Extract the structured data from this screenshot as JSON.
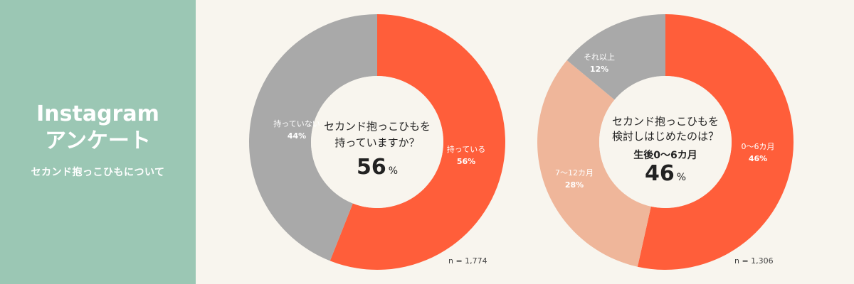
{
  "sidebar": {
    "title_line1": "Instagram",
    "title_line2": "アンケート",
    "subtitle": "セカンド抱っこひもについて"
  },
  "colors": {
    "sidebar_bg": "#9bc7b4",
    "background": "#f8f5ee",
    "orange": "#ff5e3a",
    "gray": "#a9a9a9",
    "peach": "#efb69a",
    "center_text": "#222222"
  },
  "chart_data": [
    {
      "type": "pie",
      "donut": true,
      "question_line1": "セカンド抱っこひもを",
      "question_line2": "持っていますか？",
      "highlight_value": "56",
      "highlight_unit": "%",
      "n_label": "n = 1,774",
      "slices": [
        {
          "label": "持っている",
          "value": 56,
          "value_label": "56%",
          "color": "#ff5e3a"
        },
        {
          "label": "持っていない",
          "value": 44,
          "value_label": "44%",
          "color": "#a9a9a9"
        }
      ]
    },
    {
      "type": "pie",
      "donut": true,
      "question_line1": "セカンド抱っこひもを",
      "question_line2": "検討しはじめたのは？",
      "highlight_label": "生後0〜6カ月",
      "highlight_value": "46",
      "highlight_unit": "%",
      "n_label": "n = 1,306",
      "slices": [
        {
          "label": "0〜6カ月",
          "value": 46,
          "value_label": "46%",
          "color": "#ff5e3a"
        },
        {
          "label": "7〜12カ月",
          "value": 28,
          "value_label": "28%",
          "color": "#efb69a"
        },
        {
          "label": "それ以上",
          "value": 12,
          "value_label": "12%",
          "color": "#a9a9a9"
        }
      ]
    }
  ]
}
